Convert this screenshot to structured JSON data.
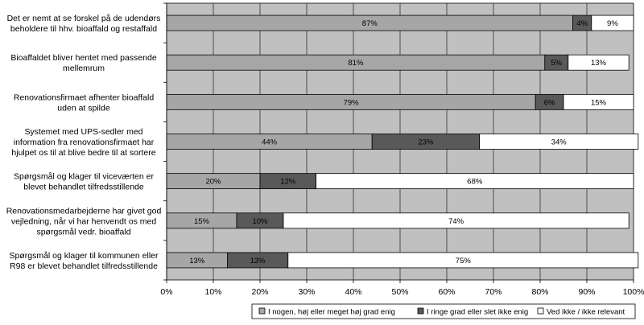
{
  "chart_data": {
    "type": "bar",
    "orientation": "horizontal",
    "stacked": true,
    "categories": [
      [
        "Det er nemt at se forskel på de udendørs",
        "beholdere til hhv. bioaffald og restaffald"
      ],
      [
        "Bioaffaldet bliver hentet med passende",
        "mellemrum"
      ],
      [
        "Renovationsfirmaet afhenter bioaffald",
        "uden at spilde"
      ],
      [
        "Systemet med UPS-sedler med",
        "information fra renovationsfirmaet har",
        "hjulpet os til at blive bedre til at sortere"
      ],
      [
        "Spørgsmål og klager til viceværten er",
        "blevet behandlet tilfredsstillende"
      ],
      [
        "Renovationsmedarbejderne har givet god",
        "vejledning, når vi har henvendt os med",
        "spørgsmål vedr. bioaffald"
      ],
      [
        "Spørgsmål og klager til kommunen eller",
        "R98 er blevet behandlet tilfredsstillende"
      ]
    ],
    "series": [
      {
        "name": "I nogen, høj eller meget høj grad enig",
        "color": "#a6a6a6",
        "values": [
          87,
          81,
          79,
          44,
          20,
          15,
          13
        ]
      },
      {
        "name": "I ringe grad eller slet ikke enig",
        "color": "#595959",
        "values": [
          4,
          5,
          6,
          23,
          12,
          10,
          13
        ]
      },
      {
        "name": "Ved ikke / ikke relevant",
        "color": "#ffffff",
        "values": [
          9,
          13,
          15,
          34,
          68,
          74,
          75
        ]
      }
    ],
    "value_labels": [
      [
        "87%",
        "4%",
        "9%"
      ],
      [
        "81%",
        "5%",
        "13%"
      ],
      [
        "79%",
        "6%",
        "15%"
      ],
      [
        "44%",
        "23%",
        "34%"
      ],
      [
        "20%",
        "12%",
        "68%"
      ],
      [
        "15%",
        "10%",
        "74%"
      ],
      [
        "13%",
        "13%",
        "75%"
      ]
    ],
    "xlim": [
      0,
      100
    ],
    "x_ticks": [
      "0%",
      "10%",
      "20%",
      "30%",
      "40%",
      "50%",
      "60%",
      "70%",
      "80%",
      "90%",
      "100%"
    ],
    "plot_background": "#c0c0c0",
    "grid": true,
    "legend_position": "bottom"
  }
}
